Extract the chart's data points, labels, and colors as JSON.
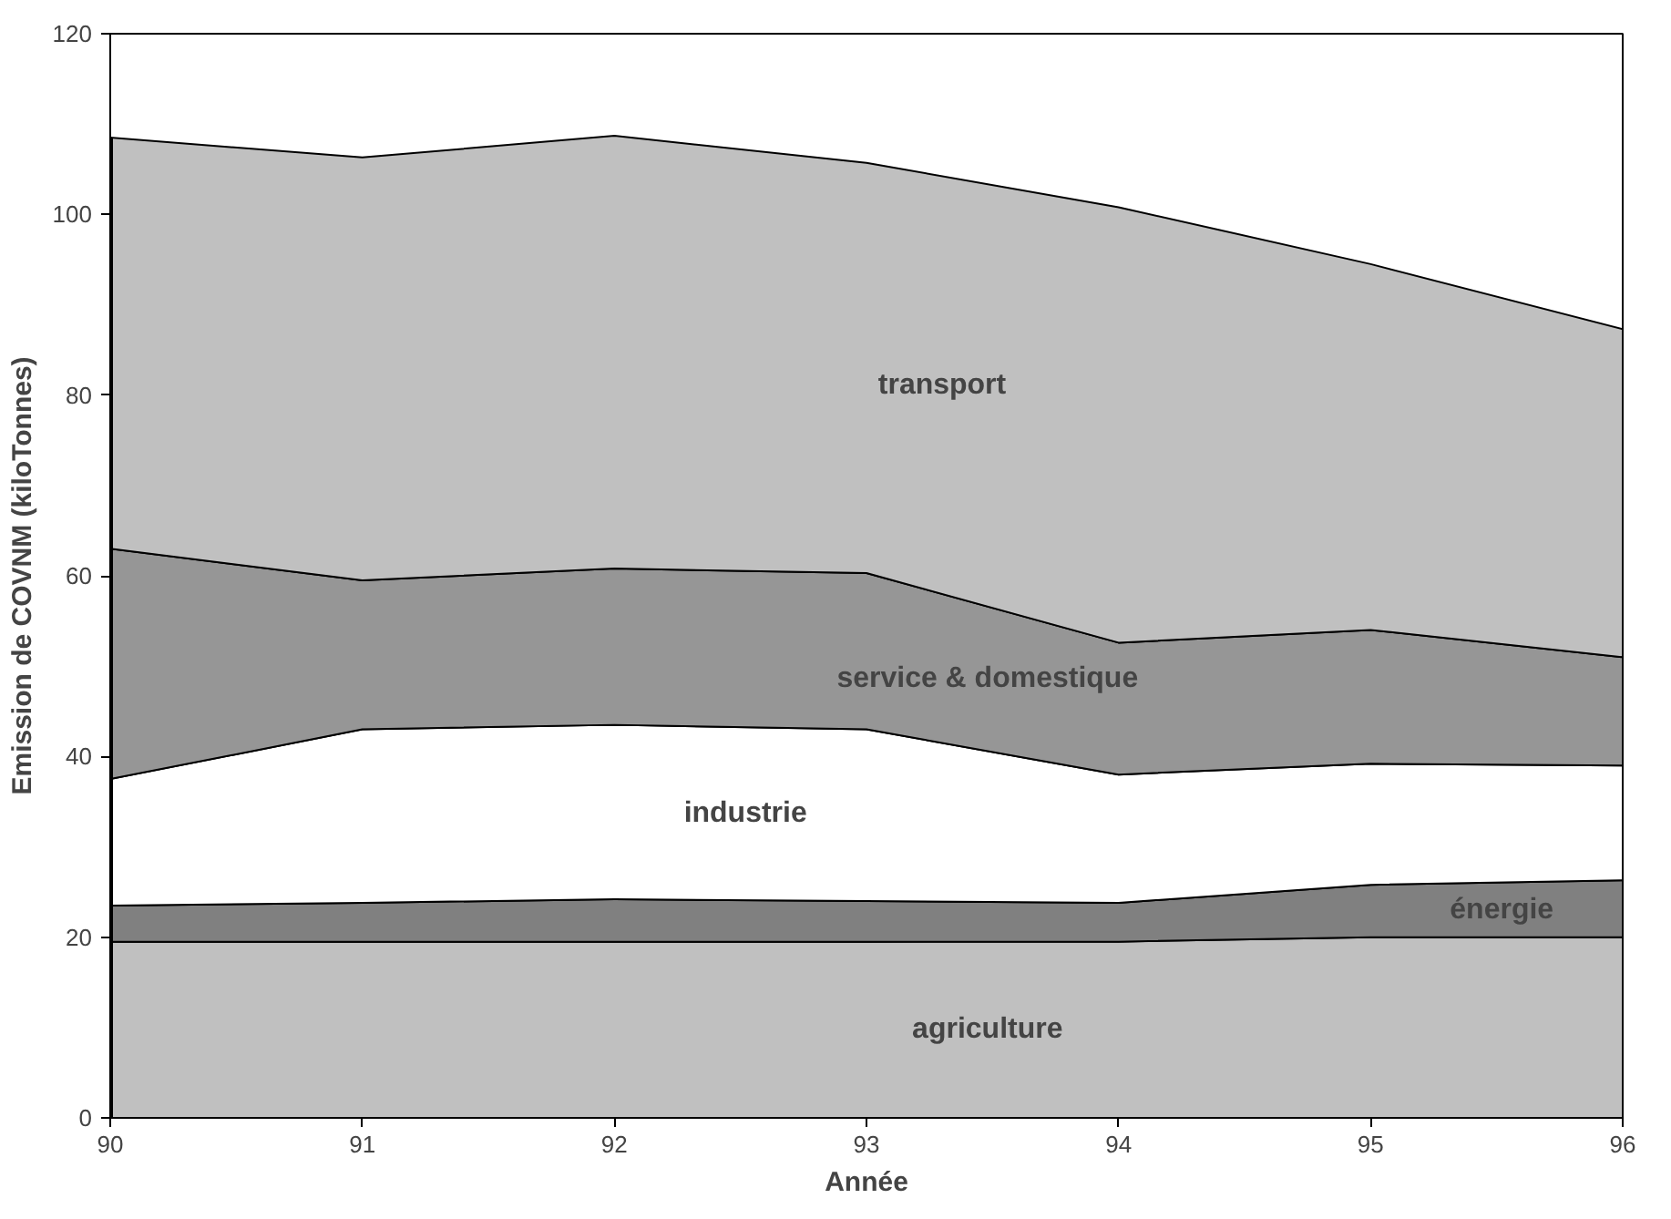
{
  "chart_data": {
    "type": "area",
    "stacked": true,
    "xlabel": "Année",
    "ylabel": "Emission de COVNM (kiloTonnes)",
    "x": [
      90,
      91,
      92,
      93,
      94,
      95,
      96
    ],
    "xlim": [
      90,
      96
    ],
    "ylim": [
      0,
      120
    ],
    "xticks": [
      90,
      91,
      92,
      93,
      94,
      95,
      96
    ],
    "yticks": [
      0,
      20,
      40,
      60,
      80,
      100,
      120
    ],
    "grid": false,
    "series": [
      {
        "name": "agriculture",
        "color": "#c0c0c0",
        "values": [
          19.5,
          19.5,
          19.5,
          19.5,
          19.5,
          20,
          20
        ]
      },
      {
        "name": "énergie",
        "color": "#808080",
        "values": [
          4,
          4.3,
          4.7,
          4.5,
          4.3,
          5.8,
          6.3
        ]
      },
      {
        "name": "industrie",
        "color": "#ffffff",
        "values": [
          14,
          19.2,
          19.3,
          19,
          14.2,
          13.4,
          12.7
        ]
      },
      {
        "name": "service & domestique",
        "color": "#969696",
        "values": [
          25.5,
          16.5,
          17.3,
          17.3,
          14.6,
          14.8,
          12
        ]
      },
      {
        "name": "transport",
        "color": "#c0c0c0",
        "values": [
          45.5,
          46.8,
          47.9,
          45.4,
          48.2,
          40.5,
          36.3
        ]
      }
    ]
  }
}
